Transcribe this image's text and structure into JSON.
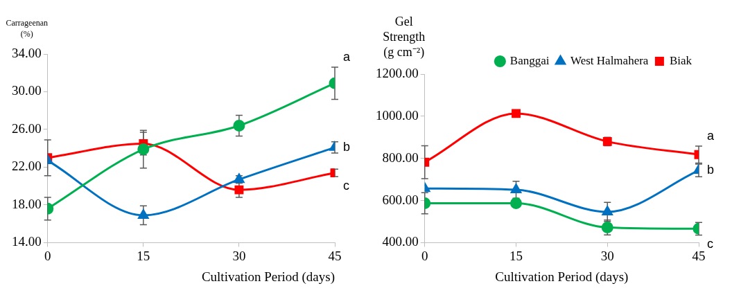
{
  "chart_data": [
    {
      "type": "line",
      "ylabel": "Carrageenan (%)",
      "xlabel": "Cultivation Period (days)",
      "x": [
        0,
        15,
        30,
        45
      ],
      "xlim": [
        0,
        45
      ],
      "xticks": [
        0,
        15,
        30,
        45
      ],
      "ylim": [
        14,
        34
      ],
      "yticks": [
        {
          "value": 14,
          "label": "14.00"
        },
        {
          "value": 18,
          "label": "18.00"
        },
        {
          "value": 22,
          "label": "22.00"
        },
        {
          "value": 26,
          "label": "26.00"
        },
        {
          "value": 30,
          "label": "30.00"
        },
        {
          "value": 34,
          "label": "34.00"
        }
      ],
      "series": [
        {
          "color": "#00b050",
          "marker": "circle",
          "values": [
            17.6,
            23.9,
            26.4,
            30.9
          ],
          "errors": [
            1.2,
            2.0,
            1.1,
            1.7
          ]
        },
        {
          "color": "#0070c0",
          "marker": "triangle",
          "values": [
            22.7,
            16.9,
            20.7,
            24.1
          ],
          "errors": [
            null,
            1.0,
            0.4,
            0.6
          ]
        },
        {
          "color": "#ff0000",
          "marker": "square",
          "values": [
            23.0,
            24.5,
            19.6,
            21.4
          ],
          "errors": [
            1.9,
            1.2,
            0.8,
            0.4
          ]
        }
      ],
      "annotations": [
        "a",
        "b",
        "c"
      ],
      "grid": false,
      "legend": false
    },
    {
      "type": "line",
      "ylabel": "Gel Strength (g cm⁻²)",
      "xlabel": "Cultivation Period (days)",
      "x": [
        0,
        15,
        30,
        45
      ],
      "xlim": [
        0,
        45
      ],
      "xticks": [
        0,
        15,
        30,
        45
      ],
      "ylim": [
        400,
        1200
      ],
      "yticks": [
        {
          "value": 400,
          "label": "400.00"
        },
        {
          "value": 600,
          "label": "600.00"
        },
        {
          "value": 800,
          "label": "800.00"
        },
        {
          "value": 1000,
          "label": "1000.00"
        },
        {
          "value": 1200,
          "label": "1200.00"
        }
      ],
      "series": [
        {
          "name": "Banggai",
          "color": "#00b050",
          "marker": "circle",
          "values": [
            587,
            587,
            472,
            466
          ],
          "errors": [
            50,
            null,
            35,
            30
          ]
        },
        {
          "name": "West Halmahera",
          "color": "#0070c0",
          "marker": "triangle",
          "values": [
            657,
            651,
            546,
            743
          ],
          "errors": [
            null,
            40,
            45,
            30
          ]
        },
        {
          "name": "Biak",
          "color": "#ff0000",
          "marker": "square",
          "values": [
            782,
            1013,
            880,
            818
          ],
          "errors": [
            78,
            null,
            20,
            40
          ]
        }
      ],
      "annotations": [
        "a",
        "b",
        "c"
      ],
      "grid": false,
      "legend": "top right"
    }
  ]
}
